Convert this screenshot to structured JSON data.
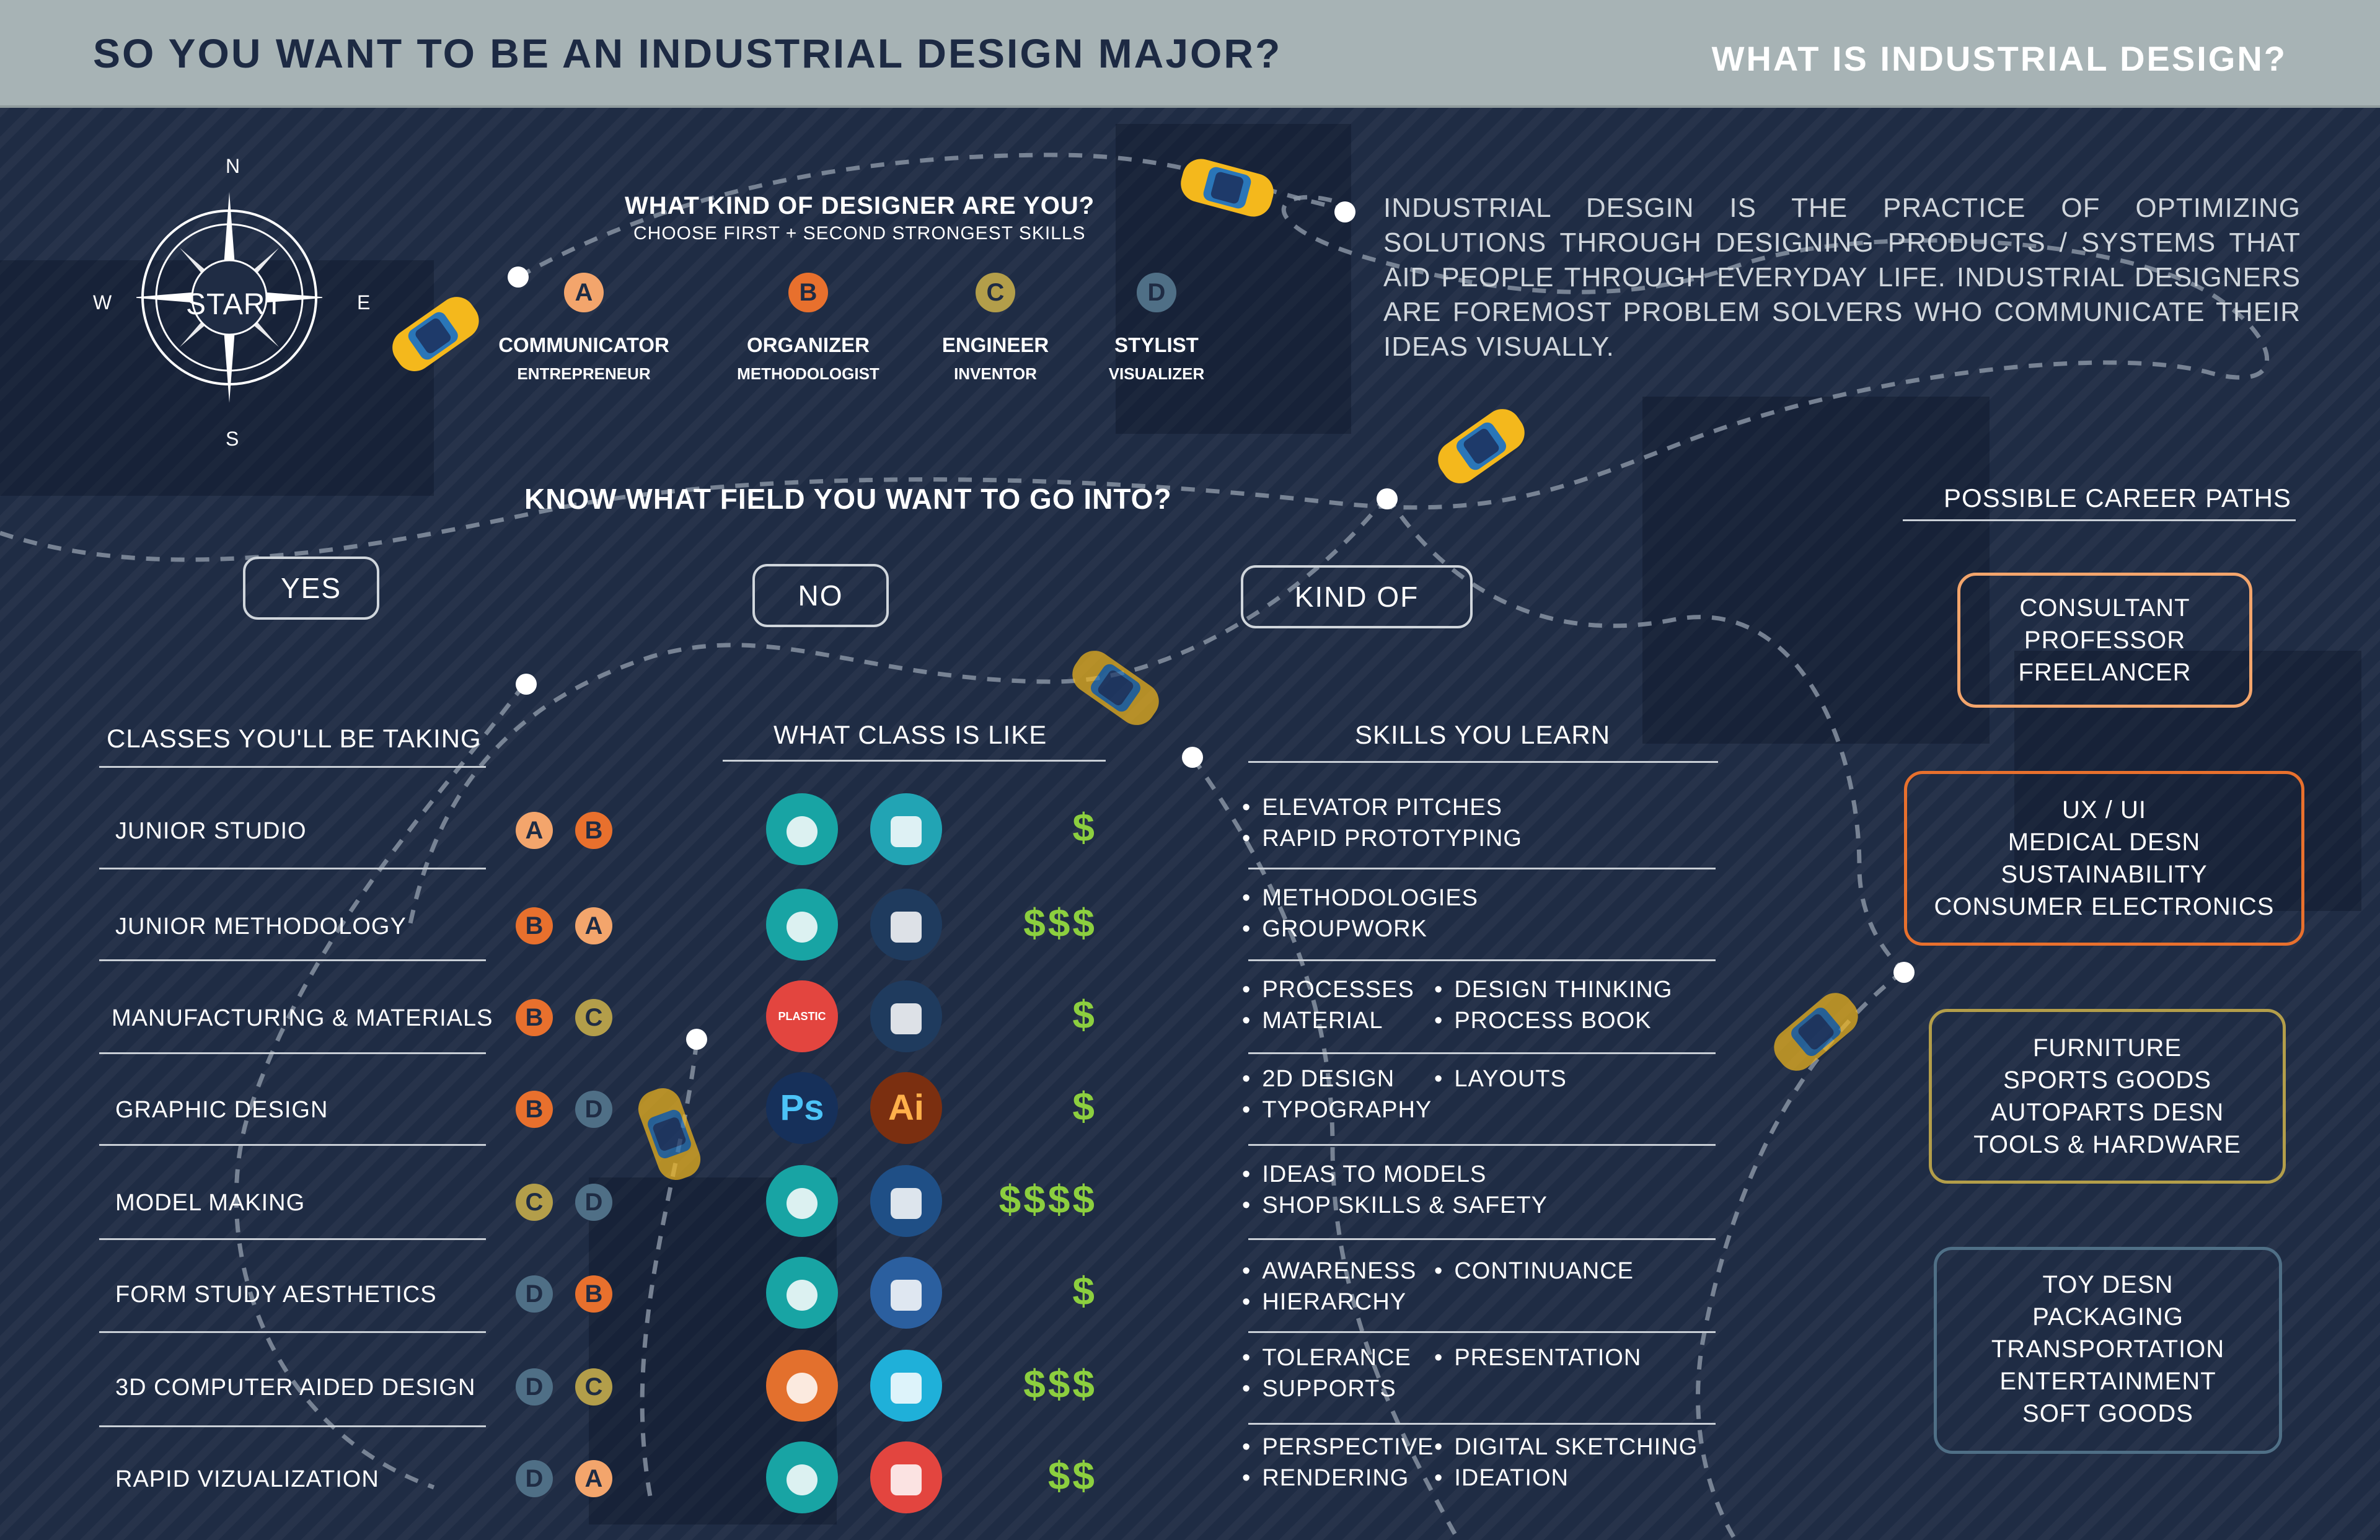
{
  "header": {
    "title": "SO YOU WANT TO BE AN INDUSTRIAL DESIGN MAJOR?",
    "subtitle": "WHAT IS INDUSTRIAL DESIGN?"
  },
  "compass": {
    "n": "N",
    "s": "S",
    "e": "E",
    "w": "W",
    "label": "START"
  },
  "designer_question": {
    "title": "WHAT KIND OF DESIGNER ARE YOU?",
    "subtitle": "CHOOSE FIRST + SECOND STRONGEST SKILLS",
    "types": [
      {
        "letter": "A",
        "name": "COMMUNICATOR",
        "sub": "ENTREPRENEUR",
        "color": "#f3a56c"
      },
      {
        "letter": "B",
        "name": "ORGANIZER",
        "sub": "METHODOLOGIST",
        "color": "#e8702d"
      },
      {
        "letter": "C",
        "name": "ENGINEER",
        "sub": "INVENTOR",
        "color": "#b39e4a"
      },
      {
        "letter": "D",
        "name": "STYLIST",
        "sub": "VISUALIZER",
        "color": "#4f6f86"
      }
    ]
  },
  "description": "INDUSTRIAL DESGIN IS THE PRACTICE OF OPTIMIZING SOLUTIONS THROUGH DESIGNING PRODUCTS / SYSTEMS THAT AID PEOPLE THROUGH EVERYDAY LIFE. INDUSTRIAL DESIGNERS ARE FOREMOST PROBLEM SOLVERS WHO COMMUNICATE THEIR IDEAS VISUALLY.",
  "field_question": {
    "title": "KNOW WHAT FIELD YOU WANT TO GO INTO?",
    "answers": [
      "YES",
      "NO",
      "KIND OF"
    ]
  },
  "classes": {
    "heading": "CLASSES YOU'LL BE TAKING",
    "rows": [
      {
        "name": "JUNIOR STUDIO",
        "first": "A",
        "second": "B",
        "cost": "$"
      },
      {
        "name": "JUNIOR METHODOLOGY",
        "first": "B",
        "second": "A",
        "cost": "$$$"
      },
      {
        "name": "MANUFACTURING & MATERIALS",
        "first": "B",
        "second": "C",
        "cost": "$"
      },
      {
        "name": "GRAPHIC DESIGN",
        "first": "B",
        "second": "D",
        "cost": "$"
      },
      {
        "name": "MODEL MAKING",
        "first": "C",
        "second": "D",
        "cost": "$$$$"
      },
      {
        "name": "FORM STUDY AESTHETICS",
        "first": "D",
        "second": "B",
        "cost": "$"
      },
      {
        "name": "3D COMPUTER AIDED DESIGN",
        "first": "D",
        "second": "C",
        "cost": "$$$"
      },
      {
        "name": "RAPID VIZUALIZATION",
        "first": "D",
        "second": "A",
        "cost": "$$"
      }
    ]
  },
  "class_like": {
    "heading": "WHAT CLASS IS LIKE",
    "icons": [
      [
        "lightbulb-head-icon",
        "presenter-icon"
      ],
      [
        "team-table-icon",
        "handshake-icon"
      ],
      [
        "plastic-materials-icon",
        "gear-icon"
      ],
      [
        "photoshop-icon",
        "illustrator-icon"
      ],
      [
        "miter-saw-icon",
        "drill-icon"
      ],
      [
        "pencil-icon",
        "paint-brush-icon"
      ],
      [
        "3d-cube-icon",
        "solidworks-icon"
      ],
      [
        "drawing-tablet-icon",
        "marker-icon"
      ]
    ],
    "ps_label": "Ps",
    "ai_label": "Ai",
    "plastic_label": "PLASTIC"
  },
  "skills": {
    "heading": "SKILLS YOU LEARN",
    "groups": [
      {
        "left": [
          "ELEVATOR PITCHES",
          "RAPID PROTOTYPING"
        ],
        "right": []
      },
      {
        "left": [
          "METHODOLOGIES",
          "GROUPWORK"
        ],
        "right": []
      },
      {
        "left": [
          "PROCESSES",
          "MATERIAL"
        ],
        "right": [
          "DESIGN THINKING",
          "PROCESS BOOK"
        ]
      },
      {
        "left": [
          "2D DESIGN",
          "TYPOGRAPHY"
        ],
        "right": [
          "LAYOUTS"
        ]
      },
      {
        "left": [
          "IDEAS TO MODELS",
          "SHOP SKILLS & SAFETY"
        ],
        "right": []
      },
      {
        "left": [
          "AWARENESS",
          "HIERARCHY"
        ],
        "right": [
          "CONTINUANCE"
        ]
      },
      {
        "left": [
          "TOLERANCE",
          "SUPPORTS"
        ],
        "right": [
          "PRESENTATION"
        ]
      },
      {
        "left": [
          "PERSPECTIVE",
          "RENDERING"
        ],
        "right": [
          "DIGITAL SKETCHING",
          "IDEATION"
        ]
      }
    ]
  },
  "careers": {
    "heading": "POSSIBLE CAREER PATHS",
    "boxes": [
      {
        "lines": [
          "CONSULTANT",
          "PROFESSOR",
          "FREELANCER"
        ],
        "color": "#f3a56c"
      },
      {
        "lines": [
          "UX / UI",
          "MEDICAL DESN",
          "SUSTAINABILITY",
          "CONSUMER ELECTRONICS"
        ],
        "color": "#e8702d"
      },
      {
        "lines": [
          "FURNITURE",
          "SPORTS GOODS",
          "AUTOPARTS DESN",
          "TOOLS & HARDWARE"
        ],
        "color": "#b39e4a"
      },
      {
        "lines": [
          "TOY DESN",
          "PACKAGING",
          "TRANSPORTATION",
          "ENTERTAINMENT",
          "SOFT GOODS"
        ],
        "color": "#4f6f86"
      }
    ]
  },
  "colors": {
    "background": "#1f2c44",
    "header": "#a7b3b5",
    "car": "#f4b81c",
    "cost": "#8ccf3f"
  }
}
